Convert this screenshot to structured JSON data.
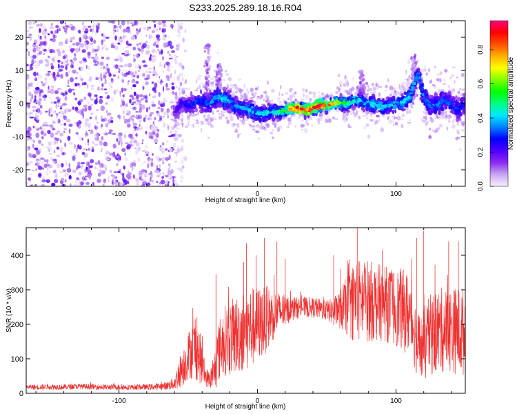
{
  "title": "S233.2025.289.18.16.R04",
  "chart_data": [
    {
      "type": "heatmap",
      "xlabel": "Height of straight line (km)",
      "ylabel": "Frequency (Hz)",
      "xlim": [
        -167,
        150
      ],
      "ylim": [
        -25,
        25
      ],
      "xticks": [
        -100,
        0,
        100
      ],
      "yticks": [
        -20,
        -10,
        0,
        10,
        20
      ],
      "colorbar": {
        "label": "Normalized spectral amplitude",
        "range": [
          0,
          0.97
        ],
        "ticks": [
          0.0,
          0.2,
          0.4,
          0.6,
          0.8
        ],
        "colormap": [
          "#f8f0ff",
          "#c9a6f2",
          "#8b2cf0",
          "#4f00ff",
          "#0000ff",
          "#0080ff",
          "#00e8ff",
          "#00ff80",
          "#00ff00",
          "#80ff00",
          "#ffff00",
          "#ffb000",
          "#ff5000",
          "#ff0000",
          "#ff0080"
        ]
      },
      "noise_region": {
        "x_from": -167,
        "x_to": -60,
        "frequency_spread": [
          -25,
          25
        ],
        "amplitude": 0.15
      },
      "ridge": [
        {
          "x": -60,
          "f": -3.0,
          "width": 3.0,
          "amp": 0.2
        },
        {
          "x": -55,
          "f": 0.0,
          "width": 3.5,
          "amp": 0.25
        },
        {
          "x": -50,
          "f": -1.0,
          "width": 3.5,
          "amp": 0.28
        },
        {
          "x": -45,
          "f": 0.5,
          "width": 4.0,
          "amp": 0.3
        },
        {
          "x": -40,
          "f": 1.0,
          "width": 4.5,
          "amp": 0.32
        },
        {
          "x": -35,
          "f": 0.0,
          "width": 4.5,
          "amp": 0.35
        },
        {
          "x": -30,
          "f": 2.0,
          "width": 4.5,
          "amp": 0.38
        },
        {
          "x": -25,
          "f": 1.5,
          "width": 4.0,
          "amp": 0.42
        },
        {
          "x": -20,
          "f": 0.5,
          "width": 4.0,
          "amp": 0.4
        },
        {
          "x": -15,
          "f": -1.0,
          "width": 4.0,
          "amp": 0.38
        },
        {
          "x": -10,
          "f": -1.5,
          "width": 3.5,
          "amp": 0.4
        },
        {
          "x": -5,
          "f": -2.0,
          "width": 3.5,
          "amp": 0.42
        },
        {
          "x": 0,
          "f": -3.0,
          "width": 3.5,
          "amp": 0.4
        },
        {
          "x": 5,
          "f": -3.0,
          "width": 3.5,
          "amp": 0.42
        },
        {
          "x": 10,
          "f": -2.5,
          "width": 3.0,
          "amp": 0.45
        },
        {
          "x": 15,
          "f": -2.5,
          "width": 3.0,
          "amp": 0.5
        },
        {
          "x": 20,
          "f": -2.0,
          "width": 2.5,
          "amp": 0.6
        },
        {
          "x": 25,
          "f": -1.5,
          "width": 2.5,
          "amp": 0.8
        },
        {
          "x": 30,
          "f": -1.5,
          "width": 2.5,
          "amp": 0.9
        },
        {
          "x": 35,
          "f": -2.0,
          "width": 2.5,
          "amp": 0.85
        },
        {
          "x": 40,
          "f": -1.5,
          "width": 2.5,
          "amp": 0.9
        },
        {
          "x": 45,
          "f": -0.5,
          "width": 2.5,
          "amp": 0.95
        },
        {
          "x": 50,
          "f": -0.5,
          "width": 2.5,
          "amp": 0.85
        },
        {
          "x": 55,
          "f": 0.0,
          "width": 2.5,
          "amp": 0.75
        },
        {
          "x": 60,
          "f": 0.0,
          "width": 3.0,
          "amp": 0.6
        },
        {
          "x": 65,
          "f": 0.0,
          "width": 3.0,
          "amp": 0.5
        },
        {
          "x": 70,
          "f": 1.0,
          "width": 3.0,
          "amp": 0.45
        },
        {
          "x": 75,
          "f": 1.0,
          "width": 3.5,
          "amp": 0.45
        },
        {
          "x": 80,
          "f": 0.0,
          "width": 3.5,
          "amp": 0.42
        },
        {
          "x": 85,
          "f": -0.5,
          "width": 3.5,
          "amp": 0.45
        },
        {
          "x": 90,
          "f": -1.0,
          "width": 3.5,
          "amp": 0.42
        },
        {
          "x": 95,
          "f": -0.5,
          "width": 3.5,
          "amp": 0.4
        },
        {
          "x": 100,
          "f": 0.0,
          "width": 3.5,
          "amp": 0.42
        },
        {
          "x": 105,
          "f": 0.5,
          "width": 3.5,
          "amp": 0.45
        },
        {
          "x": 110,
          "f": 2.0,
          "width": 4.0,
          "amp": 0.4
        },
        {
          "x": 113,
          "f": 6.0,
          "width": 3.0,
          "amp": 0.4
        },
        {
          "x": 116,
          "f": 9.0,
          "width": 2.5,
          "amp": 0.35
        },
        {
          "x": 120,
          "f": 2.0,
          "width": 4.5,
          "amp": 0.35
        },
        {
          "x": 125,
          "f": -1.0,
          "width": 4.5,
          "amp": 0.35
        },
        {
          "x": 130,
          "f": 0.0,
          "width": 4.5,
          "amp": 0.38
        },
        {
          "x": 135,
          "f": 1.0,
          "width": 4.5,
          "amp": 0.35
        },
        {
          "x": 140,
          "f": 0.0,
          "width": 4.5,
          "amp": 0.32
        },
        {
          "x": 145,
          "f": -2.0,
          "width": 4.5,
          "amp": 0.3
        },
        {
          "x": 150,
          "f": 0.0,
          "width": 4.5,
          "amp": 0.3
        }
      ]
    },
    {
      "type": "line",
      "xlabel": "Height of straight line (km)",
      "ylabel": "SNR (10 * v/v)",
      "xlim": [
        -167,
        150
      ],
      "ylim": [
        0,
        480
      ],
      "xticks": [
        -100,
        0,
        100
      ],
      "yticks": [
        0,
        100,
        200,
        300,
        400
      ],
      "color": "#ef3030",
      "series": [
        {
          "x": [
            -167,
            -160,
            -150,
            -140,
            -130,
            -120,
            -110,
            -100,
            -90,
            -80,
            -70,
            -65,
            -60,
            -58,
            -55,
            -52,
            -50,
            -48,
            -45,
            -42,
            -40,
            -38,
            -35,
            -32,
            -30,
            -28,
            -25,
            -20,
            -15,
            -10,
            -5,
            0,
            5,
            10,
            15,
            20,
            25,
            30,
            35,
            40,
            45,
            50,
            55,
            60,
            65,
            70,
            75,
            80,
            85,
            90,
            95,
            100,
            105,
            110,
            112,
            115,
            118,
            120,
            125,
            130,
            135,
            140,
            145,
            150
          ],
          "mean": [
            18,
            18,
            19,
            18,
            20,
            19,
            18,
            18,
            18,
            18,
            20,
            22,
            30,
            45,
            70,
            90,
            110,
            120,
            130,
            110,
            80,
            50,
            40,
            50,
            80,
            120,
            150,
            160,
            170,
            180,
            190,
            200,
            210,
            225,
            235,
            240,
            245,
            248,
            250,
            248,
            245,
            240,
            238,
            245,
            255,
            265,
            270,
            268,
            265,
            262,
            255,
            250,
            240,
            230,
            200,
            150,
            130,
            140,
            170,
            180,
            185,
            185,
            180,
            175
          ],
          "spread": [
            6,
            8,
            8,
            8,
            8,
            8,
            8,
            8,
            8,
            8,
            10,
            12,
            20,
            35,
            55,
            60,
            70,
            80,
            90,
            80,
            60,
            30,
            25,
            45,
            70,
            90,
            100,
            110,
            115,
            120,
            120,
            110,
            100,
            80,
            60,
            45,
            35,
            30,
            30,
            30,
            30,
            30,
            40,
            60,
            90,
            120,
            125,
            120,
            115,
            110,
            110,
            115,
            120,
            120,
            110,
            100,
            100,
            110,
            120,
            125,
            125,
            125,
            130,
            130
          ],
          "spikes": [
            {
              "x": -45,
              "y": 215
            },
            {
              "x": -30,
              "y": 345
            },
            {
              "x": -10,
              "y": 380
            },
            {
              "x": -8,
              "y": 435
            },
            {
              "x": -1,
              "y": 400
            },
            {
              "x": 5,
              "y": 450
            },
            {
              "x": 14,
              "y": 440
            },
            {
              "x": 20,
              "y": 390
            },
            {
              "x": 55,
              "y": 400
            },
            {
              "x": 60,
              "y": 360
            },
            {
              "x": 65,
              "y": 385
            },
            {
              "x": 72,
              "y": 480
            },
            {
              "x": 90,
              "y": 415
            },
            {
              "x": 115,
              "y": 450
            },
            {
              "x": 120,
              "y": 470
            },
            {
              "x": 138,
              "y": 440
            },
            {
              "x": 145,
              "y": 440
            }
          ]
        }
      ]
    }
  ]
}
